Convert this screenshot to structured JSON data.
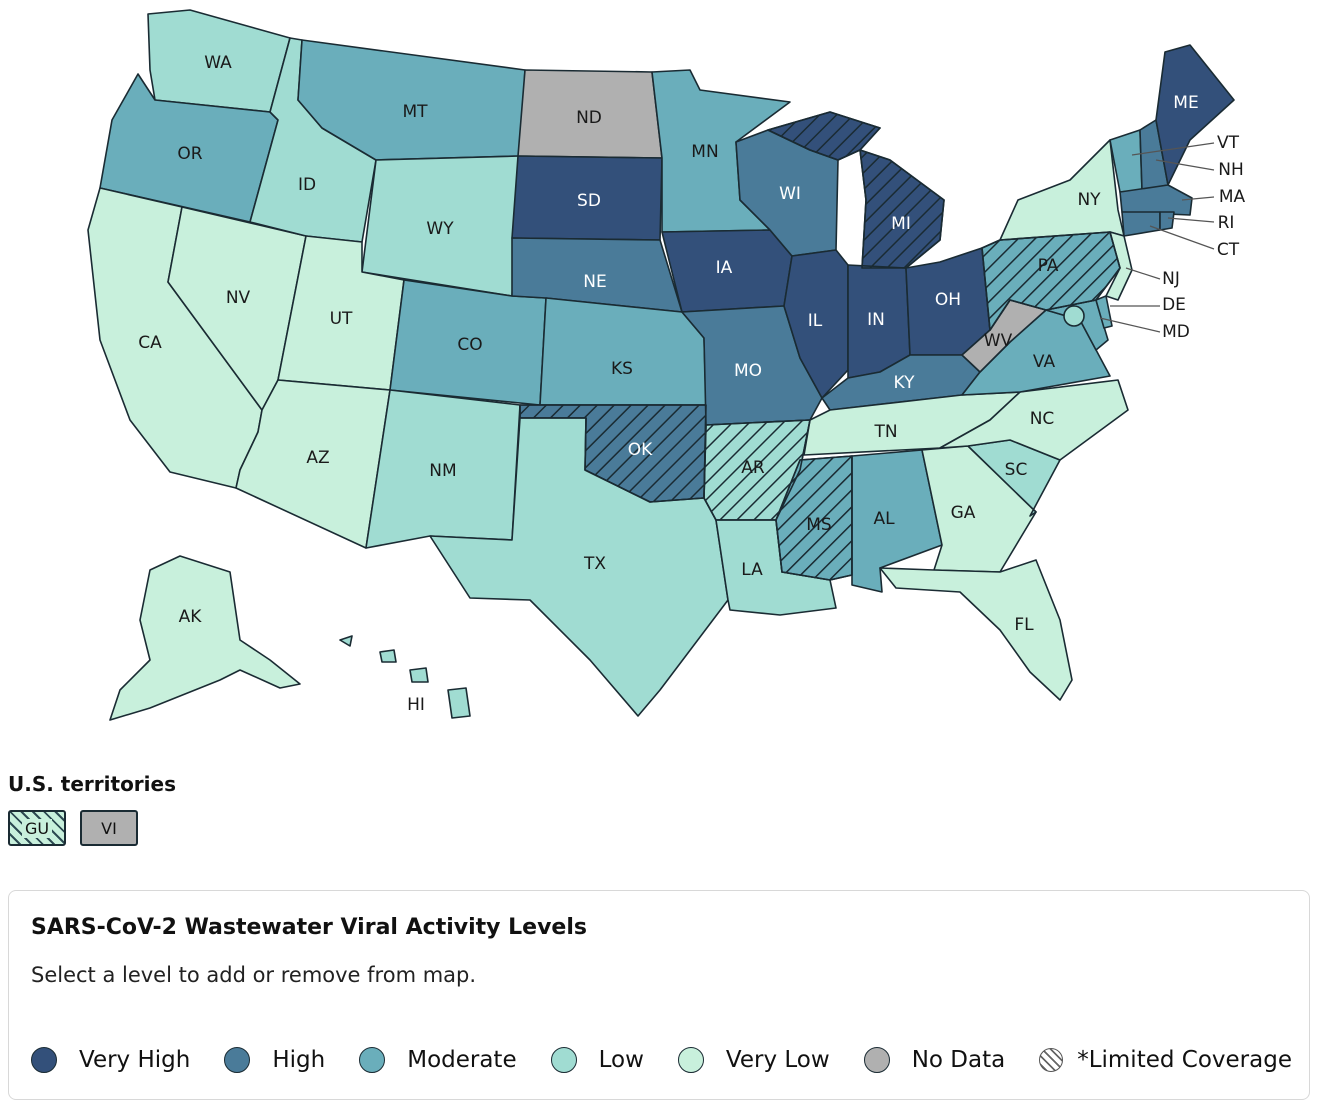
{
  "map": {
    "states": [
      {
        "abbr": "WA",
        "level": "Low",
        "limited": false
      },
      {
        "abbr": "OR",
        "level": "Moderate",
        "limited": false
      },
      {
        "abbr": "CA",
        "level": "Very Low",
        "limited": false
      },
      {
        "abbr": "NV",
        "level": "Very Low",
        "limited": false
      },
      {
        "abbr": "ID",
        "level": "Low",
        "limited": false
      },
      {
        "abbr": "MT",
        "level": "Moderate",
        "limited": false
      },
      {
        "abbr": "WY",
        "level": "Low",
        "limited": false
      },
      {
        "abbr": "UT",
        "level": "Very Low",
        "limited": false
      },
      {
        "abbr": "AZ",
        "level": "Very Low",
        "limited": false
      },
      {
        "abbr": "CO",
        "level": "Moderate",
        "limited": false
      },
      {
        "abbr": "NM",
        "level": "Low",
        "limited": false
      },
      {
        "abbr": "ND",
        "level": "No Data",
        "limited": false
      },
      {
        "abbr": "SD",
        "level": "Very High",
        "limited": false
      },
      {
        "abbr": "NE",
        "level": "High",
        "limited": false
      },
      {
        "abbr": "KS",
        "level": "Moderate",
        "limited": false
      },
      {
        "abbr": "OK",
        "level": "High",
        "limited": true
      },
      {
        "abbr": "TX",
        "level": "Low",
        "limited": false
      },
      {
        "abbr": "MN",
        "level": "Moderate",
        "limited": false
      },
      {
        "abbr": "IA",
        "level": "Very High",
        "limited": false
      },
      {
        "abbr": "MO",
        "level": "High",
        "limited": false
      },
      {
        "abbr": "AR",
        "level": "Low",
        "limited": true
      },
      {
        "abbr": "LA",
        "level": "Low",
        "limited": false
      },
      {
        "abbr": "WI",
        "level": "High",
        "limited": false
      },
      {
        "abbr": "IL",
        "level": "Very High",
        "limited": false
      },
      {
        "abbr": "MI",
        "level": "Very High",
        "limited": true
      },
      {
        "abbr": "IN",
        "level": "Very High",
        "limited": false
      },
      {
        "abbr": "OH",
        "level": "Very High",
        "limited": false
      },
      {
        "abbr": "KY",
        "level": "High",
        "limited": false
      },
      {
        "abbr": "TN",
        "level": "Very Low",
        "limited": false
      },
      {
        "abbr": "MS",
        "level": "Moderate",
        "limited": true
      },
      {
        "abbr": "AL",
        "level": "Moderate",
        "limited": false
      },
      {
        "abbr": "GA",
        "level": "Very Low",
        "limited": false
      },
      {
        "abbr": "FL",
        "level": "Very Low",
        "limited": false
      },
      {
        "abbr": "SC",
        "level": "Low",
        "limited": false
      },
      {
        "abbr": "NC",
        "level": "Very Low",
        "limited": false
      },
      {
        "abbr": "VA",
        "level": "Moderate",
        "limited": false
      },
      {
        "abbr": "WV",
        "level": "No Data",
        "limited": false
      },
      {
        "abbr": "PA",
        "level": "Moderate",
        "limited": true
      },
      {
        "abbr": "NY",
        "level": "Very Low",
        "limited": false
      },
      {
        "abbr": "VT",
        "level": "Moderate",
        "limited": false
      },
      {
        "abbr": "NH",
        "level": "High",
        "limited": false
      },
      {
        "abbr": "ME",
        "level": "Very High",
        "limited": false
      },
      {
        "abbr": "MA",
        "level": "High",
        "limited": false
      },
      {
        "abbr": "RI",
        "level": "High",
        "limited": false
      },
      {
        "abbr": "CT",
        "level": "High",
        "limited": false
      },
      {
        "abbr": "NJ",
        "level": "Very Low",
        "limited": false
      },
      {
        "abbr": "DE",
        "level": "Moderate",
        "limited": false
      },
      {
        "abbr": "MD",
        "level": "Moderate",
        "limited": false
      },
      {
        "abbr": "DC",
        "level": "Low",
        "limited": false
      },
      {
        "abbr": "AK",
        "level": "Very Low",
        "limited": false
      },
      {
        "abbr": "HI",
        "level": "Low",
        "limited": false
      }
    ]
  },
  "territories": {
    "heading": "U.S. territories",
    "items": [
      {
        "abbr": "GU",
        "level": "Very Low",
        "limited": true
      },
      {
        "abbr": "VI",
        "level": "No Data",
        "limited": false
      }
    ]
  },
  "legend": {
    "title": "SARS-CoV-2 Wastewater Viral Activity Levels",
    "instruction": "Select a level to add or remove from map.",
    "levels": [
      {
        "label": "Very High",
        "color": "#33507a"
      },
      {
        "label": "High",
        "color": "#4a7b99"
      },
      {
        "label": "Moderate",
        "color": "#6aaebb"
      },
      {
        "label": "Low",
        "color": "#a0dcd2"
      },
      {
        "label": "Very Low",
        "color": "#c8f0dc"
      },
      {
        "label": "No Data",
        "color": "#b0b0b0"
      }
    ],
    "limited_label": "*Limited Coverage"
  }
}
